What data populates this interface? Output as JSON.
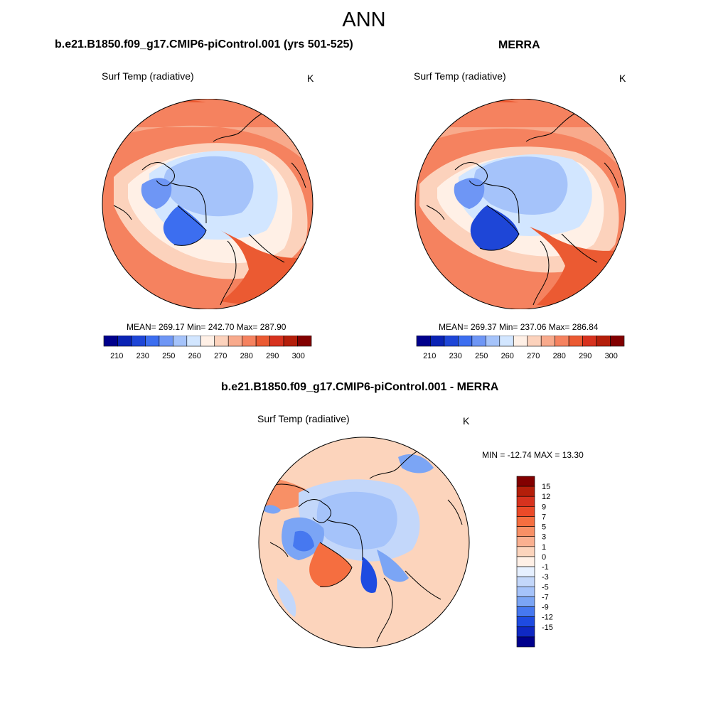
{
  "figure": {
    "title": "ANN"
  },
  "panels": {
    "model": {
      "title": "b.e21.B1850.f09_g17.CMIP6-piControl.001 (yrs 501-525)",
      "variable": "Surf Temp (radiative)",
      "units": "K",
      "stats": "MEAN= 269.17  Min= 242.70  Max= 287.90"
    },
    "obs": {
      "title": "MERRA",
      "variable": "Surf Temp (radiative)",
      "units": "K",
      "stats": "MEAN= 269.37  Min= 237.06  Max= 286.84"
    },
    "diff": {
      "title": "b.e21.B1850.f09_g17.CMIP6-piControl.001 - MERRA",
      "variable": "Surf Temp (radiative)",
      "units": "K",
      "stats": "MIN = -12.74 MAX =  13.30"
    }
  },
  "colorbars": {
    "absolute": {
      "tick_labels": [
        "210",
        "230",
        "250",
        "260",
        "270",
        "280",
        "290",
        "300"
      ],
      "colors": [
        "#00008c",
        "#0a23b4",
        "#1e46d7",
        "#3c6ef0",
        "#6e96f5",
        "#a5c3fa",
        "#d2e6ff",
        "#fff0e6",
        "#fcd2bc",
        "#f8aa8c",
        "#f5825f",
        "#eb5a32",
        "#d7321e",
        "#b41e0a",
        "#820000"
      ]
    },
    "difference": {
      "tick_labels": [
        "15",
        "12",
        "9",
        "7",
        "5",
        "3",
        "1",
        "0",
        "-1",
        "-3",
        "-5",
        "-7",
        "-9",
        "-12",
        "-15"
      ],
      "colors": [
        "#820000",
        "#b41e0a",
        "#d7321e",
        "#eb4a28",
        "#f56e40",
        "#f89066",
        "#fab090",
        "#fcd4bc",
        "#fff0e6",
        "#e6f0ff",
        "#c3d7fa",
        "#a5c3fa",
        "#7ba5f5",
        "#4678f0",
        "#1e4be1",
        "#0f28c3",
        "#00008c"
      ]
    }
  },
  "chart_data": [
    {
      "type": "heatmap",
      "title": "b.e21.B1850.f09_g17.CMIP6-piControl.001 (yrs 501-525)",
      "variable": "Surf Temp (radiative)",
      "units": "K",
      "projection": "north polar stereographic",
      "mean": 269.17,
      "min": 242.7,
      "max": 287.9,
      "levels": [
        210,
        220,
        230,
        240,
        250,
        255,
        260,
        265,
        270,
        275,
        280,
        285,
        290,
        295,
        300
      ]
    },
    {
      "type": "heatmap",
      "title": "MERRA",
      "variable": "Surf Temp (radiative)",
      "units": "K",
      "projection": "north polar stereographic",
      "mean": 269.37,
      "min": 237.06,
      "max": 286.84,
      "levels": [
        210,
        220,
        230,
        240,
        250,
        255,
        260,
        265,
        270,
        275,
        280,
        285,
        290,
        295,
        300
      ]
    },
    {
      "type": "heatmap",
      "title": "b.e21.B1850.f09_g17.CMIP6-piControl.001 - MERRA",
      "variable": "Surf Temp (radiative)",
      "units": "K",
      "projection": "north polar stereographic",
      "min": -12.74,
      "max": 13.3,
      "levels": [
        -15,
        -12,
        -9,
        -7,
        -5,
        -3,
        -1,
        0,
        1,
        3,
        5,
        7,
        9,
        12,
        15
      ]
    }
  ]
}
